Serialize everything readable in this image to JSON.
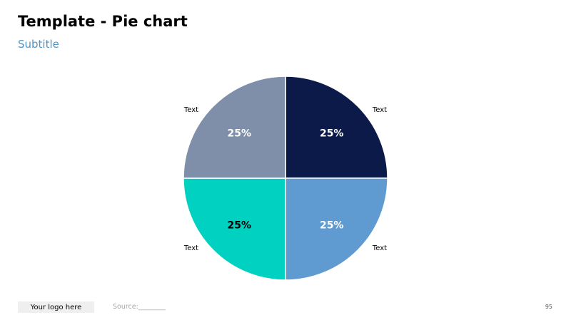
{
  "slide": {
    "title": "Template - Pie chart",
    "subtitle": "Subtitle",
    "footer": {
      "logo_text": "Your logo here",
      "source_text": "Source:________",
      "page_number": "95"
    }
  },
  "chart_data": {
    "type": "pie",
    "categories": [
      "Text",
      "Text",
      "Text",
      "Text"
    ],
    "values": [
      25,
      25,
      25,
      25
    ],
    "labels": [
      "25%",
      "25%",
      "25%",
      "25%"
    ],
    "colors": [
      "#0b1a48",
      "#5f9bd0",
      "#00d1c0",
      "#7f8faa"
    ],
    "label_colors": [
      "#ffffff",
      "#ffffff",
      "#000000",
      "#ffffff"
    ],
    "start_angle": "12 o'clock",
    "direction": "clockwise"
  }
}
